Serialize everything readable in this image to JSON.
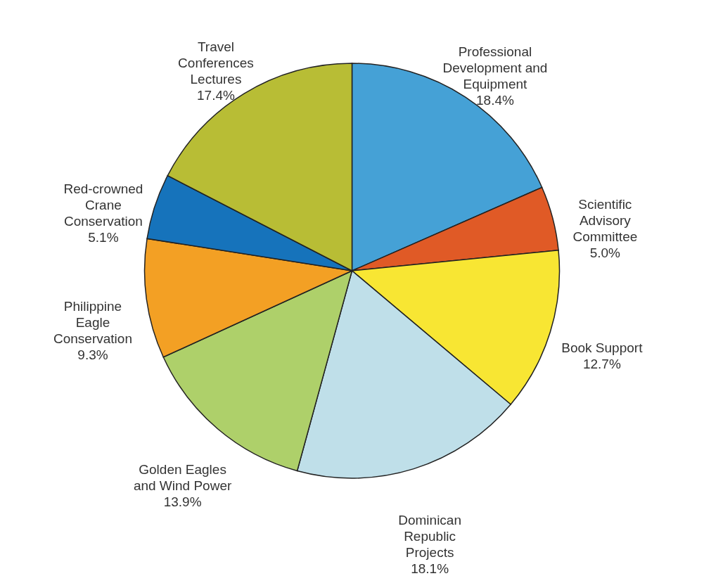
{
  "chart_data": {
    "type": "pie",
    "categories": [
      "Professional Development and Equipment",
      "Scientific Advisory Committee",
      "Book Support",
      "Dominican Republic Projects",
      "Golden Eagles and Wind Power",
      "Philippine Eagle Conservation",
      "Red-crowned Crane Conservation",
      "Travel Conferences Lectures"
    ],
    "values": [
      18.4,
      5.0,
      12.7,
      18.1,
      13.9,
      9.3,
      5.1,
      17.4
    ],
    "value_labels": [
      "18.4%",
      "5.0%",
      "12.7%",
      "18.1%",
      "13.9%",
      "9.3%",
      "5.1%",
      "17.4%"
    ],
    "colors": [
      "#45a1d6",
      "#e05a26",
      "#f8e633",
      "#bfdfe9",
      "#aed06a",
      "#f3a024",
      "#1673bb",
      "#b8bd35"
    ]
  }
}
